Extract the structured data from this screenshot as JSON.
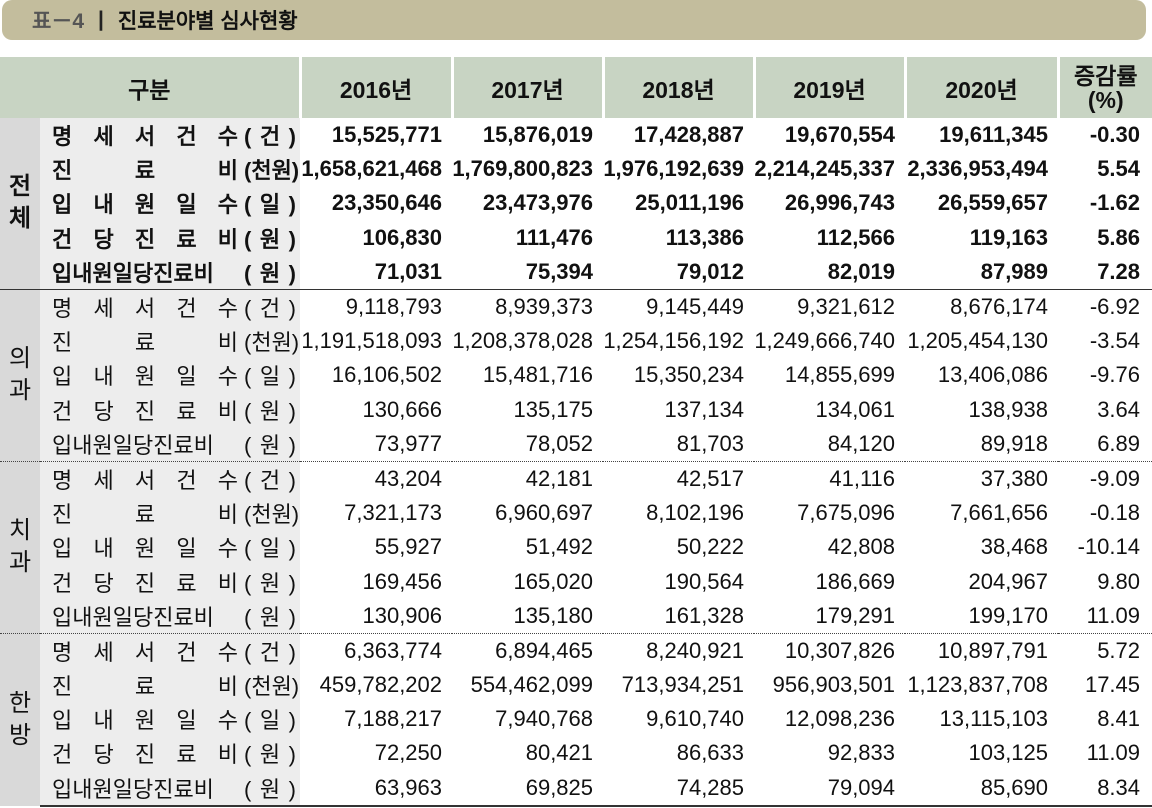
{
  "title": {
    "number": "표－4",
    "separator": "|",
    "text": "진료분야별 심사현황"
  },
  "header": {
    "category": "구분",
    "years": [
      "2016년",
      "2017년",
      "2018년",
      "2019년",
      "2020년"
    ],
    "change": "증감률",
    "change_unit": "(%)"
  },
  "groups": [
    {
      "name": [
        "전",
        "체"
      ],
      "rows": [
        {
          "label": "명 세 서 건 수",
          "unit": "( 건 )",
          "values": [
            "15,525,771",
            "15,876,019",
            "17,428,887",
            "19,670,554",
            "19,611,345"
          ],
          "change": "-0.30"
        },
        {
          "label": "진 료 비",
          "unit": "(천원)",
          "values": [
            "1,658,621,468",
            "1,769,800,823",
            "1,976,192,639",
            "2,214,245,337",
            "2,336,953,494"
          ],
          "change": "5.54"
        },
        {
          "label": "입 내 원 일 수",
          "unit": "( 일 )",
          "values": [
            "23,350,646",
            "23,473,976",
            "25,011,196",
            "26,996,743",
            "26,559,657"
          ],
          "change": "-1.62"
        },
        {
          "label": "건 당 진 료 비",
          "unit": "( 원 )",
          "values": [
            "106,830",
            "111,476",
            "113,386",
            "112,566",
            "119,163"
          ],
          "change": "5.86"
        },
        {
          "label": "입내원일당진료비",
          "unit": "( 원 )",
          "values": [
            "71,031",
            "75,394",
            "79,012",
            "82,019",
            "87,989"
          ],
          "change": "7.28"
        }
      ]
    },
    {
      "name": [
        "의",
        "과"
      ],
      "rows": [
        {
          "label": "명 세 서 건 수",
          "unit": "( 건 )",
          "values": [
            "9,118,793",
            "8,939,373",
            "9,145,449",
            "9,321,612",
            "8,676,174"
          ],
          "change": "-6.92"
        },
        {
          "label": "진 료 비",
          "unit": "(천원)",
          "values": [
            "1,191,518,093",
            "1,208,378,028",
            "1,254,156,192",
            "1,249,666,740",
            "1,205,454,130"
          ],
          "change": "-3.54"
        },
        {
          "label": "입 내 원 일 수",
          "unit": "( 일 )",
          "values": [
            "16,106,502",
            "15,481,716",
            "15,350,234",
            "14,855,699",
            "13,406,086"
          ],
          "change": "-9.76"
        },
        {
          "label": "건 당 진 료 비",
          "unit": "( 원 )",
          "values": [
            "130,666",
            "135,175",
            "137,134",
            "134,061",
            "138,938"
          ],
          "change": "3.64"
        },
        {
          "label": "입내원일당진료비",
          "unit": "( 원 )",
          "values": [
            "73,977",
            "78,052",
            "81,703",
            "84,120",
            "89,918"
          ],
          "change": "6.89"
        }
      ]
    },
    {
      "name": [
        "치",
        "과"
      ],
      "rows": [
        {
          "label": "명 세 서 건 수",
          "unit": "( 건 )",
          "values": [
            "43,204",
            "42,181",
            "42,517",
            "41,116",
            "37,380"
          ],
          "change": "-9.09"
        },
        {
          "label": "진 료 비",
          "unit": "(천원)",
          "values": [
            "7,321,173",
            "6,960,697",
            "8,102,196",
            "7,675,096",
            "7,661,656"
          ],
          "change": "-0.18"
        },
        {
          "label": "입 내 원 일 수",
          "unit": "( 일 )",
          "values": [
            "55,927",
            "51,492",
            "50,222",
            "42,808",
            "38,468"
          ],
          "change": "-10.14"
        },
        {
          "label": "건 당 진 료 비",
          "unit": "( 원 )",
          "values": [
            "169,456",
            "165,020",
            "190,564",
            "186,669",
            "204,967"
          ],
          "change": "9.80"
        },
        {
          "label": "입내원일당진료비",
          "unit": "( 원 )",
          "values": [
            "130,906",
            "135,180",
            "161,328",
            "179,291",
            "199,170"
          ],
          "change": "11.09"
        }
      ]
    },
    {
      "name": [
        "한",
        "방"
      ],
      "rows": [
        {
          "label": "명 세 서 건 수",
          "unit": "( 건 )",
          "values": [
            "6,363,774",
            "6,894,465",
            "8,240,921",
            "10,307,826",
            "10,897,791"
          ],
          "change": "5.72"
        },
        {
          "label": "진 료 비",
          "unit": "(천원)",
          "values": [
            "459,782,202",
            "554,462,099",
            "713,934,251",
            "956,903,501",
            "1,123,837,708"
          ],
          "change": "17.45"
        },
        {
          "label": "입 내 원 일 수",
          "unit": "( 일 )",
          "values": [
            "7,188,217",
            "7,940,768",
            "9,610,740",
            "12,098,236",
            "13,115,103"
          ],
          "change": "8.41"
        },
        {
          "label": "건 당 진 료 비",
          "unit": "( 원 )",
          "values": [
            "72,250",
            "80,421",
            "86,633",
            "92,833",
            "103,125"
          ],
          "change": "11.09"
        },
        {
          "label": "입내원일당진료비",
          "unit": "( 원 )",
          "values": [
            "63,963",
            "69,825",
            "74,285",
            "79,094",
            "85,690"
          ],
          "change": "8.34"
        }
      ]
    }
  ]
}
